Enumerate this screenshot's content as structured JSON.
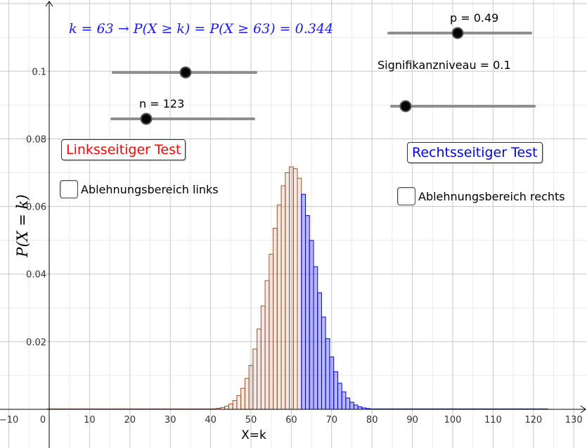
{
  "chart_data": {
    "type": "bar",
    "distribution": "binomial",
    "n": 123,
    "p": 0.49,
    "k": 63,
    "xlabel": "X=k",
    "ylabel": "P(X = k)",
    "x_ticks": [
      -10,
      0,
      10,
      20,
      30,
      40,
      50,
      60,
      70,
      80,
      90,
      100,
      110,
      120,
      130
    ],
    "y_ticks": [
      0.02,
      0.04,
      0.06,
      0.08,
      0.1
    ],
    "xlim": [
      -12.5,
      131.5
    ],
    "ylim": [
      -0.0005,
      0.1215
    ],
    "grid": true,
    "left_region": {
      "range": [
        0,
        62
      ],
      "color": "#a0522d"
    },
    "right_region": {
      "range": [
        63,
        123
      ],
      "color": "#0000ff"
    }
  },
  "formula": {
    "text": "k = 63 → P(X ≥ k) = P(X ≥ 63) = 0.344"
  },
  "sliders": {
    "p": {
      "label": "p = 0.49",
      "value": 0.49
    },
    "n": {
      "label": "n = 123",
      "value": 123
    },
    "signifikanz": {
      "label": "Signifikanzniveau = 0.1",
      "value": 0.1
    },
    "unlabeled": {
      "value": 0.1
    }
  },
  "buttons": {
    "left": {
      "label": "Linksseitiger Test",
      "color": "#ff0000"
    },
    "right": {
      "label": "Rechtsseitiger Test",
      "color": "#0000ff"
    }
  },
  "checkboxes": {
    "left": {
      "label": "Ablehnungsbereich links"
    },
    "right": {
      "label": "Ablehnungsbereich rechts"
    }
  }
}
